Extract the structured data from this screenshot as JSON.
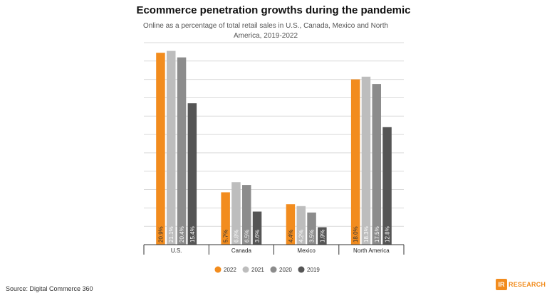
{
  "title": "Ecommerce penetration growths during the pandemic",
  "subtitle": "Online as a percentage of total retail sales in U.S., Canada, Mexico and North America, 2019-2022",
  "source": "Source: Digital Commerce 360",
  "logo": {
    "mark": "IR",
    "text": "RESEARCH"
  },
  "colors": {
    "2022": "#f28c1e",
    "2021": "#bdbdbd",
    "2020": "#8c8c8c",
    "2019": "#555555",
    "grid": "#d9d9d9",
    "axis": "#333333"
  },
  "chart_data": {
    "type": "bar",
    "categories": [
      "U.S.",
      "Canada",
      "Mexico",
      "North America"
    ],
    "series": [
      {
        "name": "2022",
        "values": [
          20.9,
          5.7,
          4.4,
          18.0
        ],
        "labels": [
          "20.9%",
          "5.7%",
          "4.4%",
          "18.0%"
        ]
      },
      {
        "name": "2021",
        "values": [
          21.1,
          6.8,
          4.2,
          18.3
        ],
        "labels": [
          "21.1%",
          "6.8%",
          "4.2%",
          "18.3%"
        ]
      },
      {
        "name": "2020",
        "values": [
          20.4,
          6.5,
          3.5,
          17.5
        ],
        "labels": [
          "20.4%",
          "6.5%",
          "3.5%",
          "17.5%"
        ]
      },
      {
        "name": "2019",
        "values": [
          15.4,
          3.6,
          1.9,
          12.8
        ],
        "labels": [
          "15.4%",
          "3.6%",
          "1.9%",
          "12.8%"
        ]
      }
    ],
    "ylim": [
      0,
      22
    ],
    "grid": true,
    "legend_position": "bottom"
  }
}
